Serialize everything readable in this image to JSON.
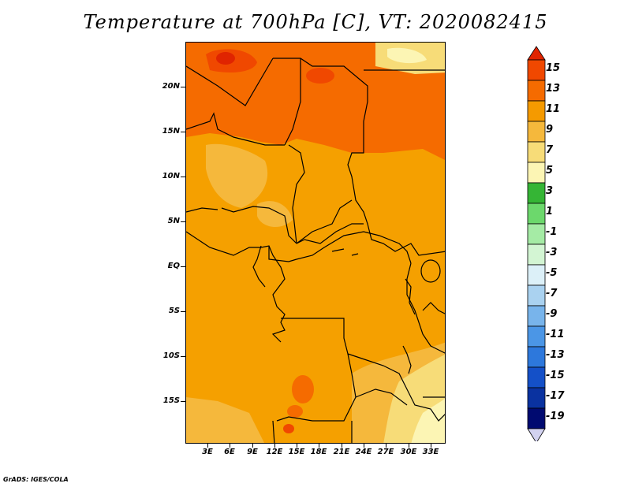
{
  "title": "Temperature at 700hPa [C], VT: 2020082415",
  "credit": "GrADS: IGES/COLA",
  "map": {
    "fill_base": "#f5a000",
    "lat_labels": [
      "20N",
      "15N",
      "10N",
      "5N",
      "EQ",
      "5S",
      "10S",
      "15S"
    ],
    "lon_labels": [
      "3E",
      "6E",
      "9E",
      "12E",
      "15E",
      "18E",
      "21E",
      "24E",
      "27E",
      "30E",
      "33E"
    ]
  },
  "colorbar": {
    "labels": [
      "15",
      "13",
      "11",
      "9",
      "7",
      "5",
      "3",
      "1",
      "-1",
      "-3",
      "-5",
      "-7",
      "-9",
      "-11",
      "-13",
      "-15",
      "-17",
      "-19"
    ],
    "colors": [
      "#e02400",
      "#f04800",
      "#f56b00",
      "#f59a00",
      "#f5b83c",
      "#f7dc78",
      "#fcf5b4",
      "#35b535",
      "#6cd86c",
      "#a5eba5",
      "#d3f5d3",
      "#dcf0f8",
      "#aad2f0",
      "#78b4eb",
      "#4b96e6",
      "#2d78dc",
      "#1450c8",
      "#0a32a0",
      "#000a70",
      "#d2d2f0"
    ]
  }
}
